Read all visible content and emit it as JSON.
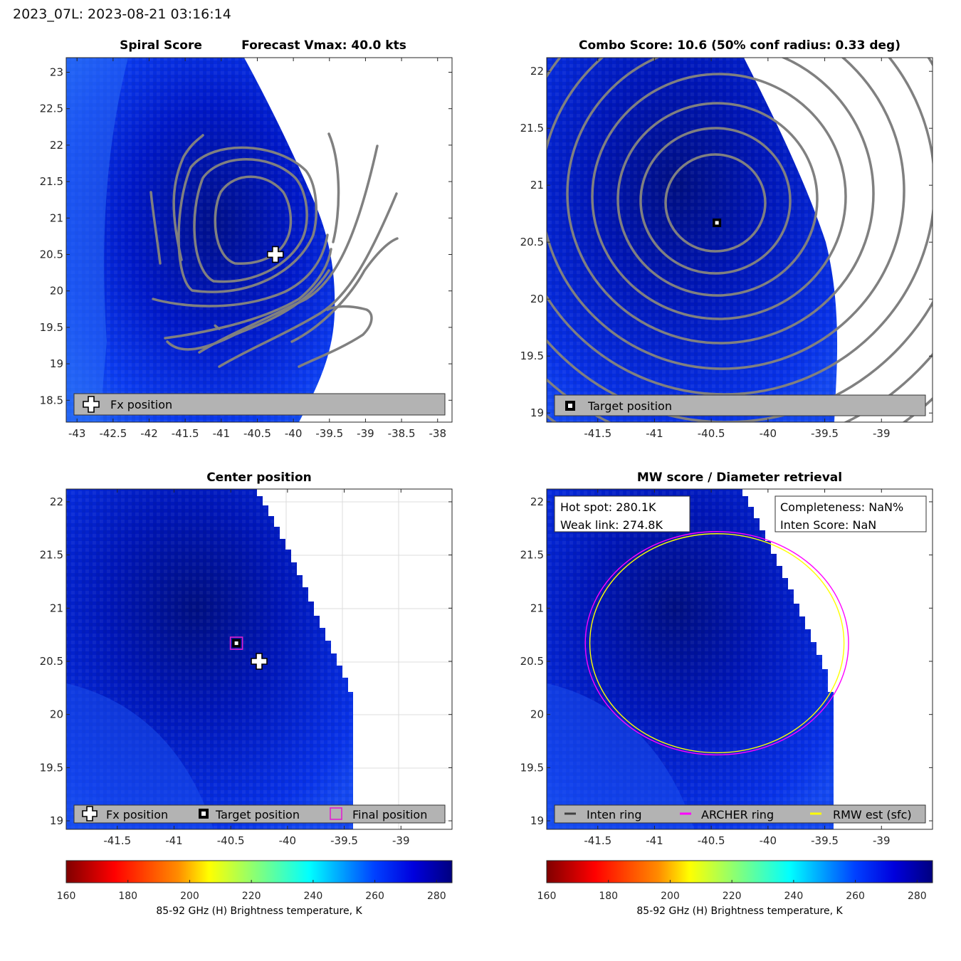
{
  "header": {
    "storm_time": "2023_07L: 2023-08-21 03:16:14"
  },
  "colors": {
    "contour": "#808080",
    "plot_bg": "#ffffff",
    "legend_bg": "#b3b3b3",
    "archer_ring": "#ff00ff",
    "rmw_ring": "#ffff00",
    "inten_ring": "#404040",
    "grid": "#dcdcdc",
    "marker_fill": "#ffffff",
    "marker_edge": "#000000"
  },
  "panels": [
    {
      "id": "spiral",
      "title_left": "Spiral Score",
      "title_right": "Forecast Vmax: 40.0 kts",
      "xlim": [
        -43.15,
        -37.8
      ],
      "ylim": [
        18.2,
        23.2
      ],
      "xticks": [
        "-43",
        "-42.5",
        "-42",
        "-41.5",
        "-41",
        "-40.5",
        "-40",
        "-39.5",
        "-39",
        "-38.5",
        "-38"
      ],
      "yticks": [
        "18.5",
        "19",
        "19.5",
        "20",
        "20.5",
        "21",
        "21.5",
        "22",
        "22.5",
        "23"
      ],
      "legend": [
        "Fx position"
      ],
      "markers": [
        {
          "type": "fx-position",
          "lon": -40.25,
          "lat": 20.5
        }
      ]
    },
    {
      "id": "combo",
      "title_left": "",
      "title_right": "Combo Score: 10.6  (50% conf radius: 0.33 deg)",
      "xlim": [
        -41.95,
        -38.55
      ],
      "ylim": [
        18.92,
        22.12
      ],
      "xticks": [
        "-41.5",
        "-41",
        "-40.5",
        "-40",
        "-39.5",
        "-39"
      ],
      "yticks": [
        "19",
        "19.5",
        "20",
        "20.5",
        "21",
        "21.5",
        "22"
      ],
      "legend": [
        "Target position"
      ],
      "markers": [
        {
          "type": "target-position",
          "lon": -40.45,
          "lat": 20.67
        }
      ]
    },
    {
      "id": "center",
      "title_left": "",
      "title_right": "Center position",
      "xlim": [
        -41.95,
        -38.55
      ],
      "ylim": [
        18.92,
        22.12
      ],
      "xticks": [
        "-41.5",
        "-41",
        "-40.5",
        "-40",
        "-39.5",
        "-39"
      ],
      "yticks": [
        "19",
        "19.5",
        "20",
        "20.5",
        "21",
        "21.5",
        "22"
      ],
      "legend": [
        "Fx position",
        "Target position",
        "Final position"
      ],
      "markers": [
        {
          "type": "target-position",
          "lon": -40.45,
          "lat": 20.67
        },
        {
          "type": "final-position",
          "lon": -40.45,
          "lat": 20.67
        },
        {
          "type": "fx-position",
          "lon": -40.25,
          "lat": 20.5
        }
      ]
    },
    {
      "id": "mwscore",
      "title_left": "",
      "title_right": "MW score / Diameter retrieval",
      "xlim": [
        -41.95,
        -38.55
      ],
      "ylim": [
        18.92,
        22.12
      ],
      "xticks": [
        "-41.5",
        "-41",
        "-40.5",
        "-40",
        "-39.5",
        "-39"
      ],
      "yticks": [
        "19",
        "19.5",
        "20",
        "20.5",
        "21",
        "21.5",
        "22"
      ],
      "legend": [
        "Inten ring",
        "ARCHER ring",
        "RMW est (sfc)"
      ],
      "info_left": [
        "Hot spot: 280.1K",
        "Weak link: 274.8K"
      ],
      "info_right": [
        "Completeness: NaN%",
        "Inten Score: NaN"
      ],
      "rings": [
        {
          "type": "archer-ring",
          "lon": -40.45,
          "lat": 20.67,
          "rx_deg": 1.16,
          "ry_deg": 1.05
        },
        {
          "type": "rmw-ring",
          "lon": -40.45,
          "lat": 20.67,
          "rx_deg": 1.12,
          "ry_deg": 1.03
        }
      ]
    }
  ],
  "colorbar": {
    "label": "85-92 GHz (H) Brightness temperature, K",
    "range": [
      160,
      285
    ],
    "ticks": [
      "160",
      "180",
      "200",
      "220",
      "240",
      "260",
      "280"
    ]
  }
}
